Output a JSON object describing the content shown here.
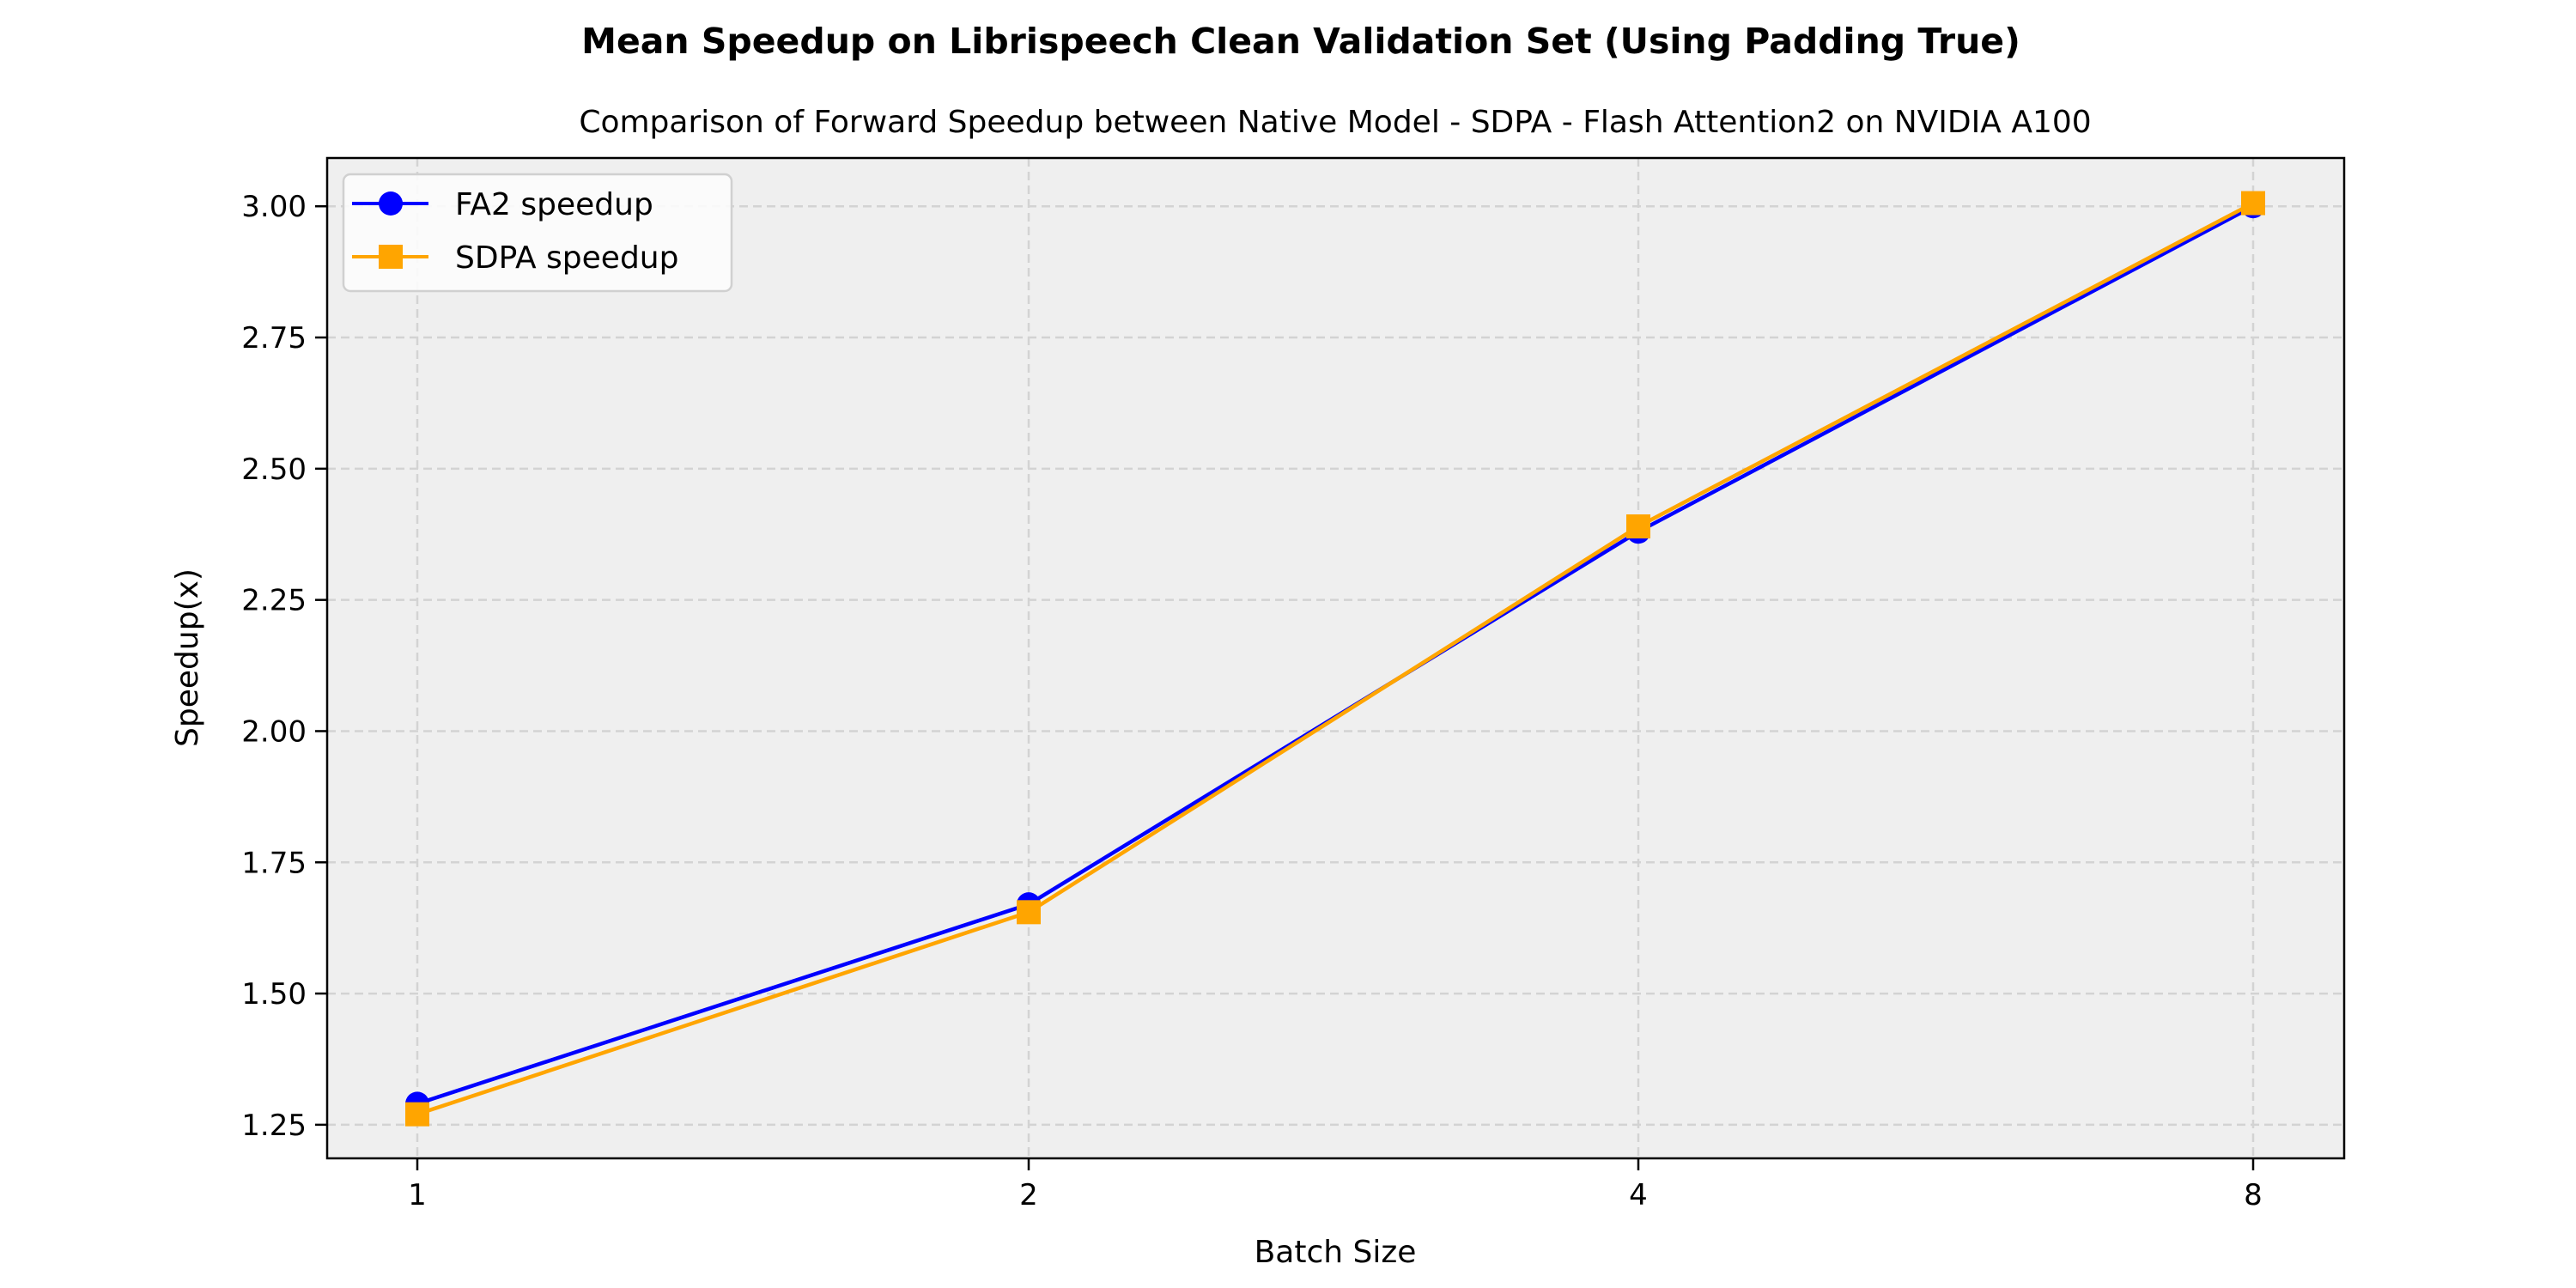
{
  "chart_data": {
    "type": "line",
    "title": "Mean Speedup on Librispeech Clean Validation Set (Using Padding True)",
    "subtitle": "Comparison of Forward Speedup between Native Model - SDPA - Flash Attention2 on NVIDIA A100",
    "xlabel": "Batch Size",
    "ylabel": "Speedup(x)",
    "categories": [
      "1",
      "2",
      "4",
      "8"
    ],
    "yticks": [
      "1.25",
      "1.50",
      "1.75",
      "2.00",
      "2.25",
      "2.50",
      "2.75",
      "3.00"
    ],
    "ylim": [
      1.186,
      3.092
    ],
    "grid": true,
    "legend_position": "top-left",
    "background": "#efefef",
    "series": [
      {
        "name": "FA2 speedup",
        "values": [
          1.29,
          1.67,
          2.38,
          3.0
        ],
        "color": "#0000ff",
        "marker": "circle"
      },
      {
        "name": "SDPA speedup",
        "values": [
          1.27,
          1.655,
          2.39,
          3.006
        ],
        "color": "#ffa500",
        "marker": "square"
      }
    ]
  }
}
